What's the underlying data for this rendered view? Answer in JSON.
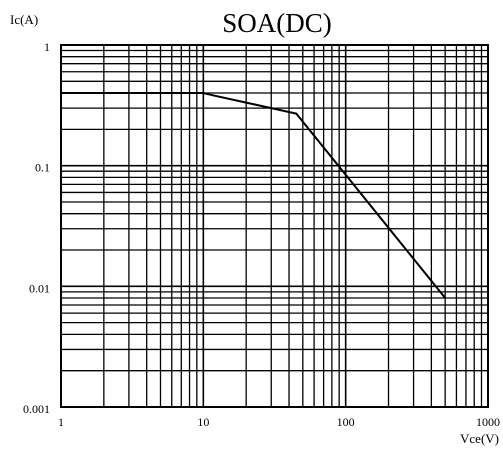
{
  "chart_data": {
    "type": "line",
    "title": "SOA(DC)",
    "xlabel": "Vce(V)",
    "ylabel": "Ic(A)",
    "x_scale": "log",
    "y_scale": "log",
    "xlim": [
      1,
      1000
    ],
    "ylim": [
      0.001,
      1
    ],
    "x_ticks": [
      {
        "value": 1,
        "label": "1"
      },
      {
        "value": 10,
        "label": "10"
      },
      {
        "value": 100,
        "label": "100"
      },
      {
        "value": 1000,
        "label": "1000"
      }
    ],
    "y_ticks": [
      {
        "value": 1,
        "label": "1"
      },
      {
        "value": 0.1,
        "label": "0.1"
      },
      {
        "value": 0.01,
        "label": "0.01"
      },
      {
        "value": 0.001,
        "label": "0.001"
      }
    ],
    "grid": true,
    "series": [
      {
        "color": "#000000",
        "x": [
          1,
          10,
          12,
          45,
          500
        ],
        "y": [
          0.4,
          0.4,
          0.38,
          0.27,
          0.008
        ]
      }
    ]
  }
}
